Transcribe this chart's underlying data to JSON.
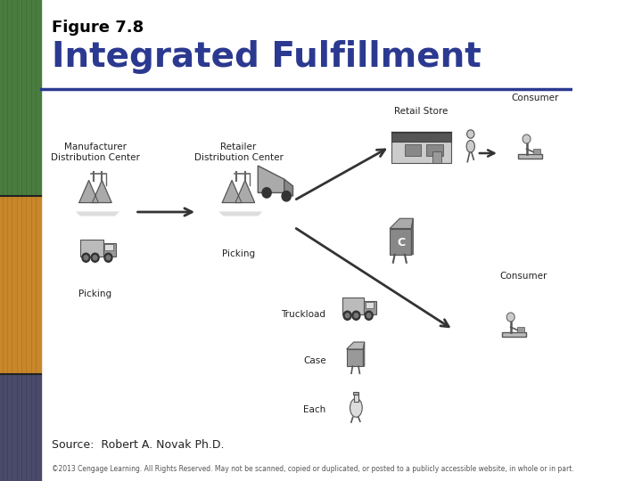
{
  "title_small": "Figure 7.8",
  "title_large": "Integrated Fulfillment",
  "source_text": "Source:  Robert A. Novak Ph.D.",
  "copyright_text": "©2013 Cengage Learning. All Rights Reserved. May not be scanned, copied or duplicated, or posted to a publicly accessible website, in whole or in part.",
  "background_color": "#ffffff",
  "title_small_color": "#000000",
  "title_large_color": "#2b3990",
  "divider_color": "#2b3990",
  "sidebar_green": "#4a7c3f",
  "sidebar_orange": "#c8872a",
  "sidebar_dark": "#4a4a6a",
  "label_fontsize": 7.5,
  "source_fontsize": 9,
  "copyright_fontsize": 5.5
}
